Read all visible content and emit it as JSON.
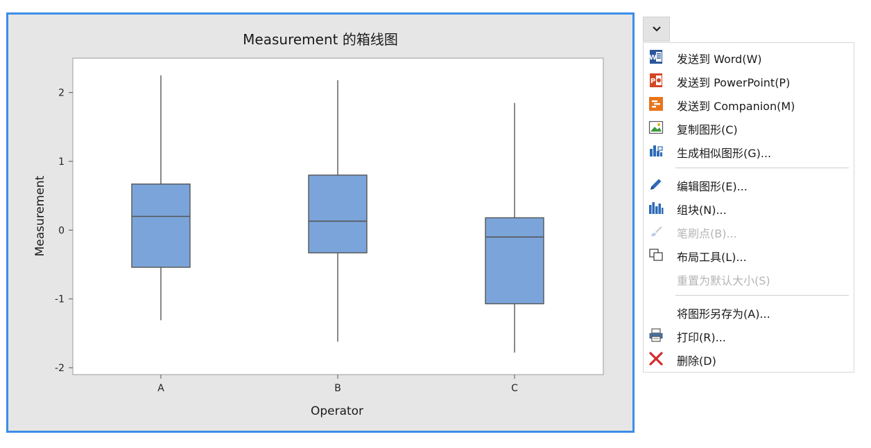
{
  "chart_data": {
    "type": "box",
    "title": "Measurement 的箱线图",
    "xlabel": "Operator",
    "ylabel": "Measurement",
    "categories": [
      "A",
      "B",
      "C"
    ],
    "ylim": [
      -2.1,
      2.5
    ],
    "yticks": [
      -2,
      -1,
      0,
      1,
      2
    ],
    "ytick_labels": [
      "-2",
      "-1",
      "0",
      "1",
      "2"
    ],
    "boxes": [
      {
        "category": "A",
        "min": -1.31,
        "q1": -0.54,
        "median": 0.2,
        "q3": 0.67,
        "max": 2.25
      },
      {
        "category": "B",
        "min": -1.62,
        "q1": -0.33,
        "median": 0.13,
        "q3": 0.8,
        "max": 2.18
      },
      {
        "category": "C",
        "min": -1.78,
        "q1": -1.07,
        "median": -0.1,
        "q3": 0.18,
        "max": 1.85
      }
    ],
    "box_color": "#7ba5da",
    "grid": false,
    "legend": "none"
  },
  "menu": {
    "toggle_icon": "chevron-down-icon",
    "items": [
      {
        "label": "发送到 Word(W)",
        "icon": "word-icon",
        "enabled": true
      },
      {
        "label": "发送到 PowerPoint(P)",
        "icon": "powerpoint-icon",
        "enabled": true
      },
      {
        "label": "发送到 Companion(M)",
        "icon": "companion-icon",
        "enabled": true
      },
      {
        "label": "复制图形(C)",
        "icon": "image-icon",
        "enabled": true
      },
      {
        "label": "生成相似图形(G)...",
        "icon": "similar-graph-icon",
        "enabled": true
      },
      {
        "label": "编辑图形(E)...",
        "icon": "pencil-icon",
        "enabled": true
      },
      {
        "label": "组块(N)...",
        "icon": "bar-group-icon",
        "enabled": true
      },
      {
        "label": "笔刷点(B)...",
        "icon": "brush-icon",
        "enabled": false
      },
      {
        "label": "布局工具(L)...",
        "icon": "layout-icon",
        "enabled": true
      },
      {
        "label": "重置为默认大小(S)",
        "icon": "",
        "enabled": false
      },
      {
        "label": "将图形另存为(A)...",
        "icon": "",
        "enabled": true
      },
      {
        "label": "打印(R)...",
        "icon": "printer-icon",
        "enabled": true
      },
      {
        "label": "删除(D)",
        "icon": "delete-x-icon",
        "enabled": true
      }
    ]
  }
}
